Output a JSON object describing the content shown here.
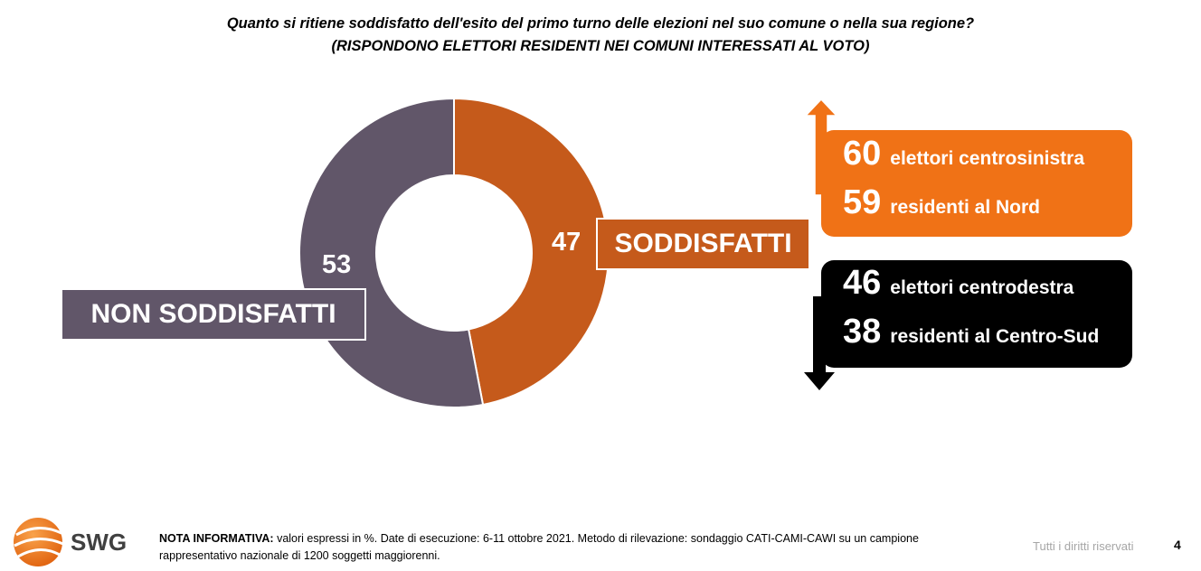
{
  "title": {
    "line1": "Quanto si ritiene soddisfatto dell'esito del primo turno delle elezioni nel suo comune o nella sua regione?",
    "line2": "(RISPONDONO ELETTORI RESIDENTI NEI COMUNI INTERESSATI AL VOTO)"
  },
  "chart_data": {
    "type": "pie",
    "categories": [
      "SODDISFATTI",
      "NON SODDISFATTI"
    ],
    "values": [
      47,
      53
    ],
    "colors": [
      "#c55a1b",
      "#615669"
    ],
    "donut": true
  },
  "labels": {
    "sodd_pct": "47",
    "non_sodd_pct": "53",
    "sodd_label": "SODDISFATTI",
    "non_sodd_label": "NON SODDISFATTI"
  },
  "breakdown": {
    "up_color": "#f07216",
    "down_color": "#000000",
    "up": [
      {
        "value": "60",
        "text": "elettori centrosinistra"
      },
      {
        "value": "59",
        "text": "residenti al Nord"
      }
    ],
    "down": [
      {
        "value": "46",
        "text": "elettori centrodestra"
      },
      {
        "value": "38",
        "text": "residenti al Centro-Sud"
      }
    ]
  },
  "footer": {
    "note_label": "NOTA INFORMATIVA:",
    "note_text": " valori espressi in %. Date di esecuzione: 6-11 ottobre 2021. Metodo di rilevazione: sondaggio CATI-CAMI-CAWI su un campione rappresentativo nazionale di 1200 soggetti maggiorenni.",
    "rights": "Tutti i diritti riservati",
    "page": "4",
    "logo_text": "SWG"
  }
}
